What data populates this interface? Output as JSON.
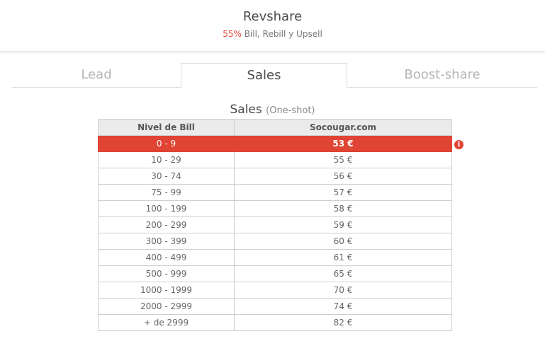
{
  "header": {
    "title": "Revshare",
    "percent": "55%",
    "subtitle_rest": " Bill, Rebill y Upsell"
  },
  "tabs": [
    {
      "label": "Lead",
      "active": false
    },
    {
      "label": "Sales",
      "active": true
    },
    {
      "label": "Boost-share",
      "active": false
    }
  ],
  "section": {
    "title": "Sales",
    "subtitle": "(One-shot)"
  },
  "table": {
    "columns": [
      "Nivel de Bill",
      "Socougar.com"
    ],
    "rows": [
      {
        "level": "0 - 9",
        "value": "53 €",
        "highlight": true
      },
      {
        "level": "10 - 29",
        "value": "55 €"
      },
      {
        "level": "30 - 74",
        "value": "56 €"
      },
      {
        "level": "75 - 99",
        "value": "57 €"
      },
      {
        "level": "100 - 199",
        "value": "58 €"
      },
      {
        "level": "200 - 299",
        "value": "59 €"
      },
      {
        "level": "300 - 399",
        "value": "60 €"
      },
      {
        "level": "400 - 499",
        "value": "61 €"
      },
      {
        "level": "500 - 999",
        "value": "65 €"
      },
      {
        "level": "1000 - 1999",
        "value": "70 €"
      },
      {
        "level": "2000 - 2999",
        "value": "74 €"
      },
      {
        "level": "+ de 2999",
        "value": "82 €"
      }
    ]
  },
  "info_icon": {
    "glyph": "i",
    "icon": "info-icon"
  },
  "colors": {
    "accent": "#e04434",
    "header_bg": "#ebebeb",
    "border": "#cfcfcf"
  }
}
